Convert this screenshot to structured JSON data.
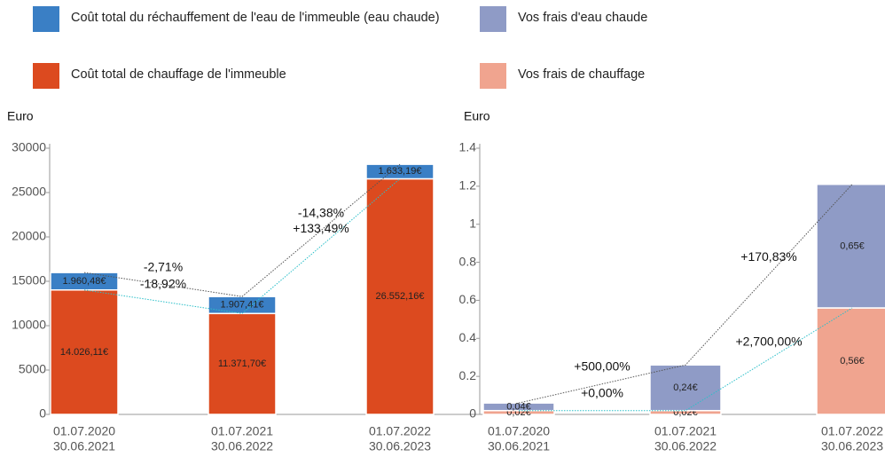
{
  "chart_data": [
    {
      "type": "bar",
      "stacked": true,
      "ylabel": "Euro",
      "categories": [
        [
          "01.07.2020",
          "30.06.2021"
        ],
        [
          "01.07.2021",
          "30.06.2022"
        ],
        [
          "01.07.2022",
          "30.06.2023"
        ]
      ],
      "series": [
        {
          "name": "Coût total du réchauffement de l'eau de l'immeuble (eau chaude)",
          "color": "#3a7fc5",
          "values": [
            1960.48,
            1907.41,
            1633.19
          ],
          "value_labels": [
            "1.960,48€",
            "1.907,41€",
            "1.633,19€"
          ]
        },
        {
          "name": "Coût total de chauffage de l'immeuble",
          "color": "#dc4a1f",
          "values": [
            14026.11,
            11371.7,
            26552.16
          ],
          "value_labels": [
            "14.026,11€",
            "11.371,70€",
            "26.552,16€"
          ]
        }
      ],
      "annotations": [
        [
          "-2,71%",
          "-18,92%"
        ],
        [
          "-14,38%",
          "+133,49%"
        ]
      ],
      "ylim": [
        0,
        30000
      ],
      "yticks": [
        0,
        5000,
        10000,
        15000,
        20000,
        25000,
        30000
      ]
    },
    {
      "type": "bar",
      "stacked": true,
      "ylabel": "Euro",
      "categories": [
        [
          "01.07.2020",
          "30.06.2021"
        ],
        [
          "01.07.2021",
          "30.06.2022"
        ],
        [
          "01.07.2022",
          "30.06.2023"
        ]
      ],
      "series": [
        {
          "name": "Vos frais d'eau chaude",
          "color": "#8f9bc6",
          "values": [
            0.04,
            0.24,
            0.65
          ],
          "value_labels": [
            "0,04€",
            "0,24€",
            "0,65€"
          ]
        },
        {
          "name": "Vos frais de chauffage",
          "color": "#f0a48f",
          "values": [
            0.02,
            0.02,
            0.56
          ],
          "value_labels": [
            "0,02€",
            "0,02€",
            "0,56€"
          ]
        }
      ],
      "annotations": [
        [
          "+500,00%",
          "+0,00%"
        ],
        [
          "+170,83%",
          "+2,700,00%"
        ]
      ],
      "ylim": [
        0,
        1.4
      ],
      "yticks": [
        0,
        0.2,
        0.4,
        0.6,
        0.8,
        1,
        1.2,
        1.4
      ]
    }
  ]
}
